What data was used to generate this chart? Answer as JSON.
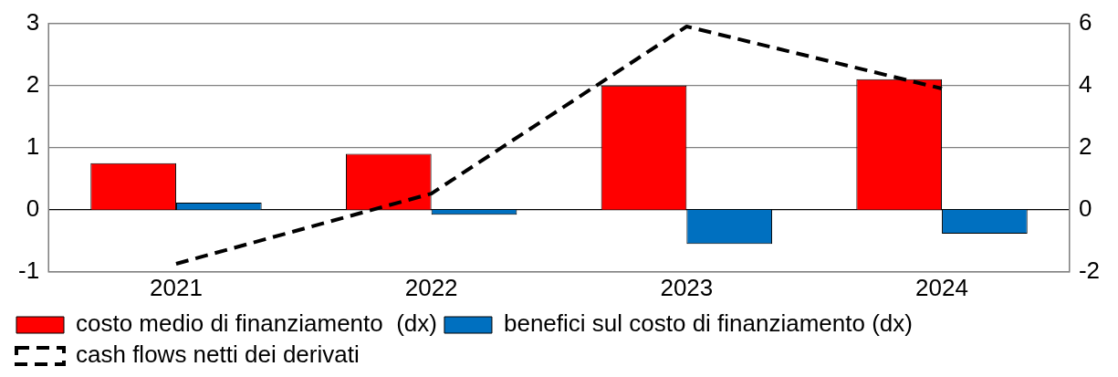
{
  "chart_data": {
    "type": "bar",
    "categories": [
      "2021",
      "2022",
      "2023",
      "2024"
    ],
    "series": [
      {
        "name": "costo medio di finanziamento  (dx)",
        "axis": "y2",
        "color": "#ff0000",
        "values": [
          1.5,
          1.8,
          4.0,
          4.2
        ]
      },
      {
        "name": "benefici sul costo di finanziamento (dx)",
        "axis": "y2",
        "color": "#0070c0",
        "values": [
          0.23,
          -0.16,
          -1.1,
          -0.77
        ]
      },
      {
        "name": "cash flows netti dei derivati",
        "type": "line",
        "color": "#000000",
        "line_style": "dashed",
        "marker": "none",
        "values": [
          -0.87,
          0.26,
          2.95,
          1.95
        ]
      }
    ],
    "ylim": [
      -1,
      3
    ],
    "yticks": [
      -1,
      0,
      1,
      2,
      3
    ],
    "y2lim": [
      -2,
      6
    ],
    "y2ticks": [
      -2,
      0,
      2,
      4,
      6
    ],
    "grid": "y",
    "legend": "bottom"
  }
}
